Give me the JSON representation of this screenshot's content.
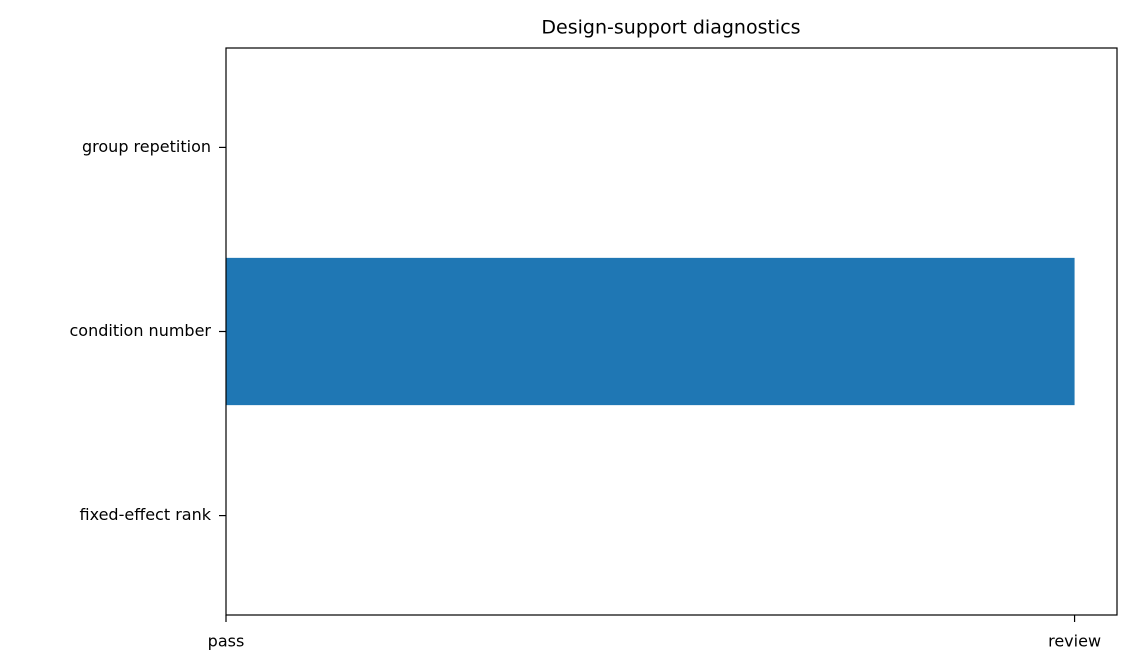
{
  "chart_data": {
    "type": "barh",
    "title": "Design-support diagnostics",
    "categories": [
      "fixed-effect rank",
      "condition number",
      "group repetition"
    ],
    "values": [
      0,
      1,
      0
    ],
    "color": "#1f77b4",
    "xlim": [
      0,
      1.05
    ],
    "xticks": [
      {
        "value": 0,
        "label": "pass"
      },
      {
        "value": 1,
        "label": "review"
      }
    ],
    "grid": false
  }
}
